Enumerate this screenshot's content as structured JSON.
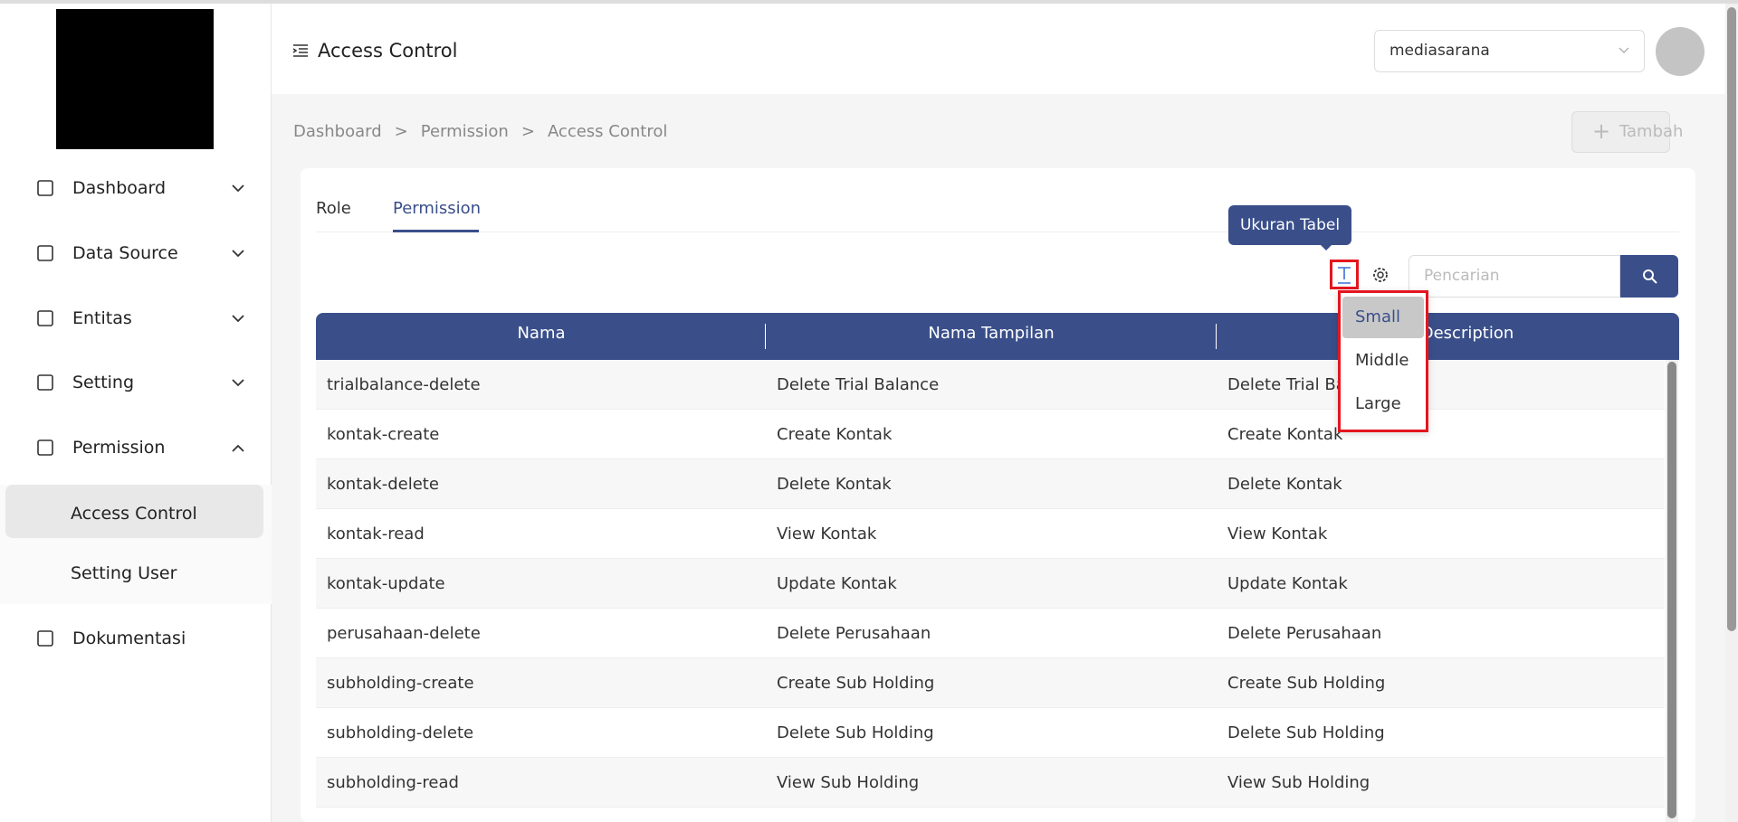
{
  "header": {
    "title": "Access Control",
    "company": "mediasarana"
  },
  "sidebar": {
    "menu": [
      "Dashboard",
      "Data Source",
      "Entitas",
      "Setting",
      "Permission"
    ],
    "submenu": [
      "Access Control",
      "Setting User"
    ],
    "footer_item": "Dokumentasi"
  },
  "breadcrumb": [
    "Dashboard",
    "Permission",
    "Access Control"
  ],
  "breadcrumb_separator": ">",
  "add_button": "Tambah",
  "tabs": [
    "Role",
    "Permission"
  ],
  "tooltip": "Ukuran Tabel",
  "search_placeholder": "Pencarian",
  "size_menu": [
    "Small",
    "Middle",
    "Large"
  ],
  "table": {
    "columns": [
      "Nama",
      "Nama Tampilan",
      "Description"
    ],
    "rows": [
      [
        "trialbalance-delete",
        "Delete Trial Balance",
        "Delete Trial Balance"
      ],
      [
        "kontak-create",
        "Create Kontak",
        "Create Kontak"
      ],
      [
        "kontak-delete",
        "Delete Kontak",
        "Delete Kontak"
      ],
      [
        "kontak-read",
        "View Kontak",
        "View Kontak"
      ],
      [
        "kontak-update",
        "Update Kontak",
        "Update Kontak"
      ],
      [
        "perusahaan-delete",
        "Delete Perusahaan",
        "Delete Perusahaan"
      ],
      [
        "subholding-create",
        "Create Sub Holding",
        "Create Sub Holding"
      ],
      [
        "subholding-delete",
        "Delete Sub Holding",
        "Delete Sub Holding"
      ],
      [
        "subholding-read",
        "View Sub Holding",
        "View Sub Holding"
      ]
    ]
  }
}
